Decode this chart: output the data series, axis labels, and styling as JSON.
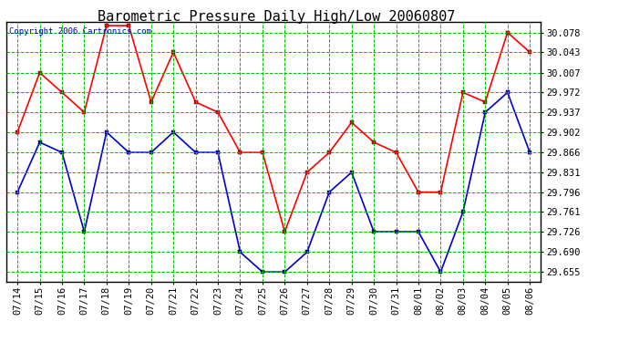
{
  "title": "Barometric Pressure Daily High/Low 20060807",
  "copyright": "Copyright 2006 Cartronics.com",
  "x_labels": [
    "07/14",
    "07/15",
    "07/16",
    "07/17",
    "07/18",
    "07/19",
    "07/20",
    "07/21",
    "07/22",
    "07/23",
    "07/24",
    "07/25",
    "07/26",
    "07/27",
    "07/28",
    "07/29",
    "07/30",
    "07/31",
    "08/01",
    "08/02",
    "08/03",
    "08/04",
    "08/05",
    "08/06"
  ],
  "high_values": [
    29.902,
    30.007,
    29.972,
    29.937,
    30.09,
    30.09,
    29.955,
    30.043,
    29.955,
    29.937,
    29.866,
    29.866,
    29.726,
    29.831,
    29.866,
    29.919,
    29.884,
    29.866,
    29.796,
    29.796,
    29.972,
    29.955,
    30.078,
    30.043
  ],
  "low_values": [
    29.796,
    29.884,
    29.866,
    29.726,
    29.902,
    29.866,
    29.866,
    29.902,
    29.866,
    29.866,
    29.69,
    29.655,
    29.655,
    29.69,
    29.796,
    29.831,
    29.726,
    29.726,
    29.726,
    29.655,
    29.761,
    29.937,
    29.972,
    29.866
  ],
  "y_ticks": [
    29.655,
    29.69,
    29.726,
    29.761,
    29.796,
    29.831,
    29.866,
    29.902,
    29.937,
    29.972,
    30.007,
    30.043,
    30.078
  ],
  "y_min": 29.637,
  "y_max": 30.096,
  "high_color": "#ff0000",
  "low_color": "#0000cc",
  "bg_color": "#ffffff",
  "plot_bg_color": "#ffffff",
  "grid_color": "#00bb00",
  "title_fontsize": 11,
  "tick_fontsize": 7.5,
  "copyright_color": "#0000aa"
}
